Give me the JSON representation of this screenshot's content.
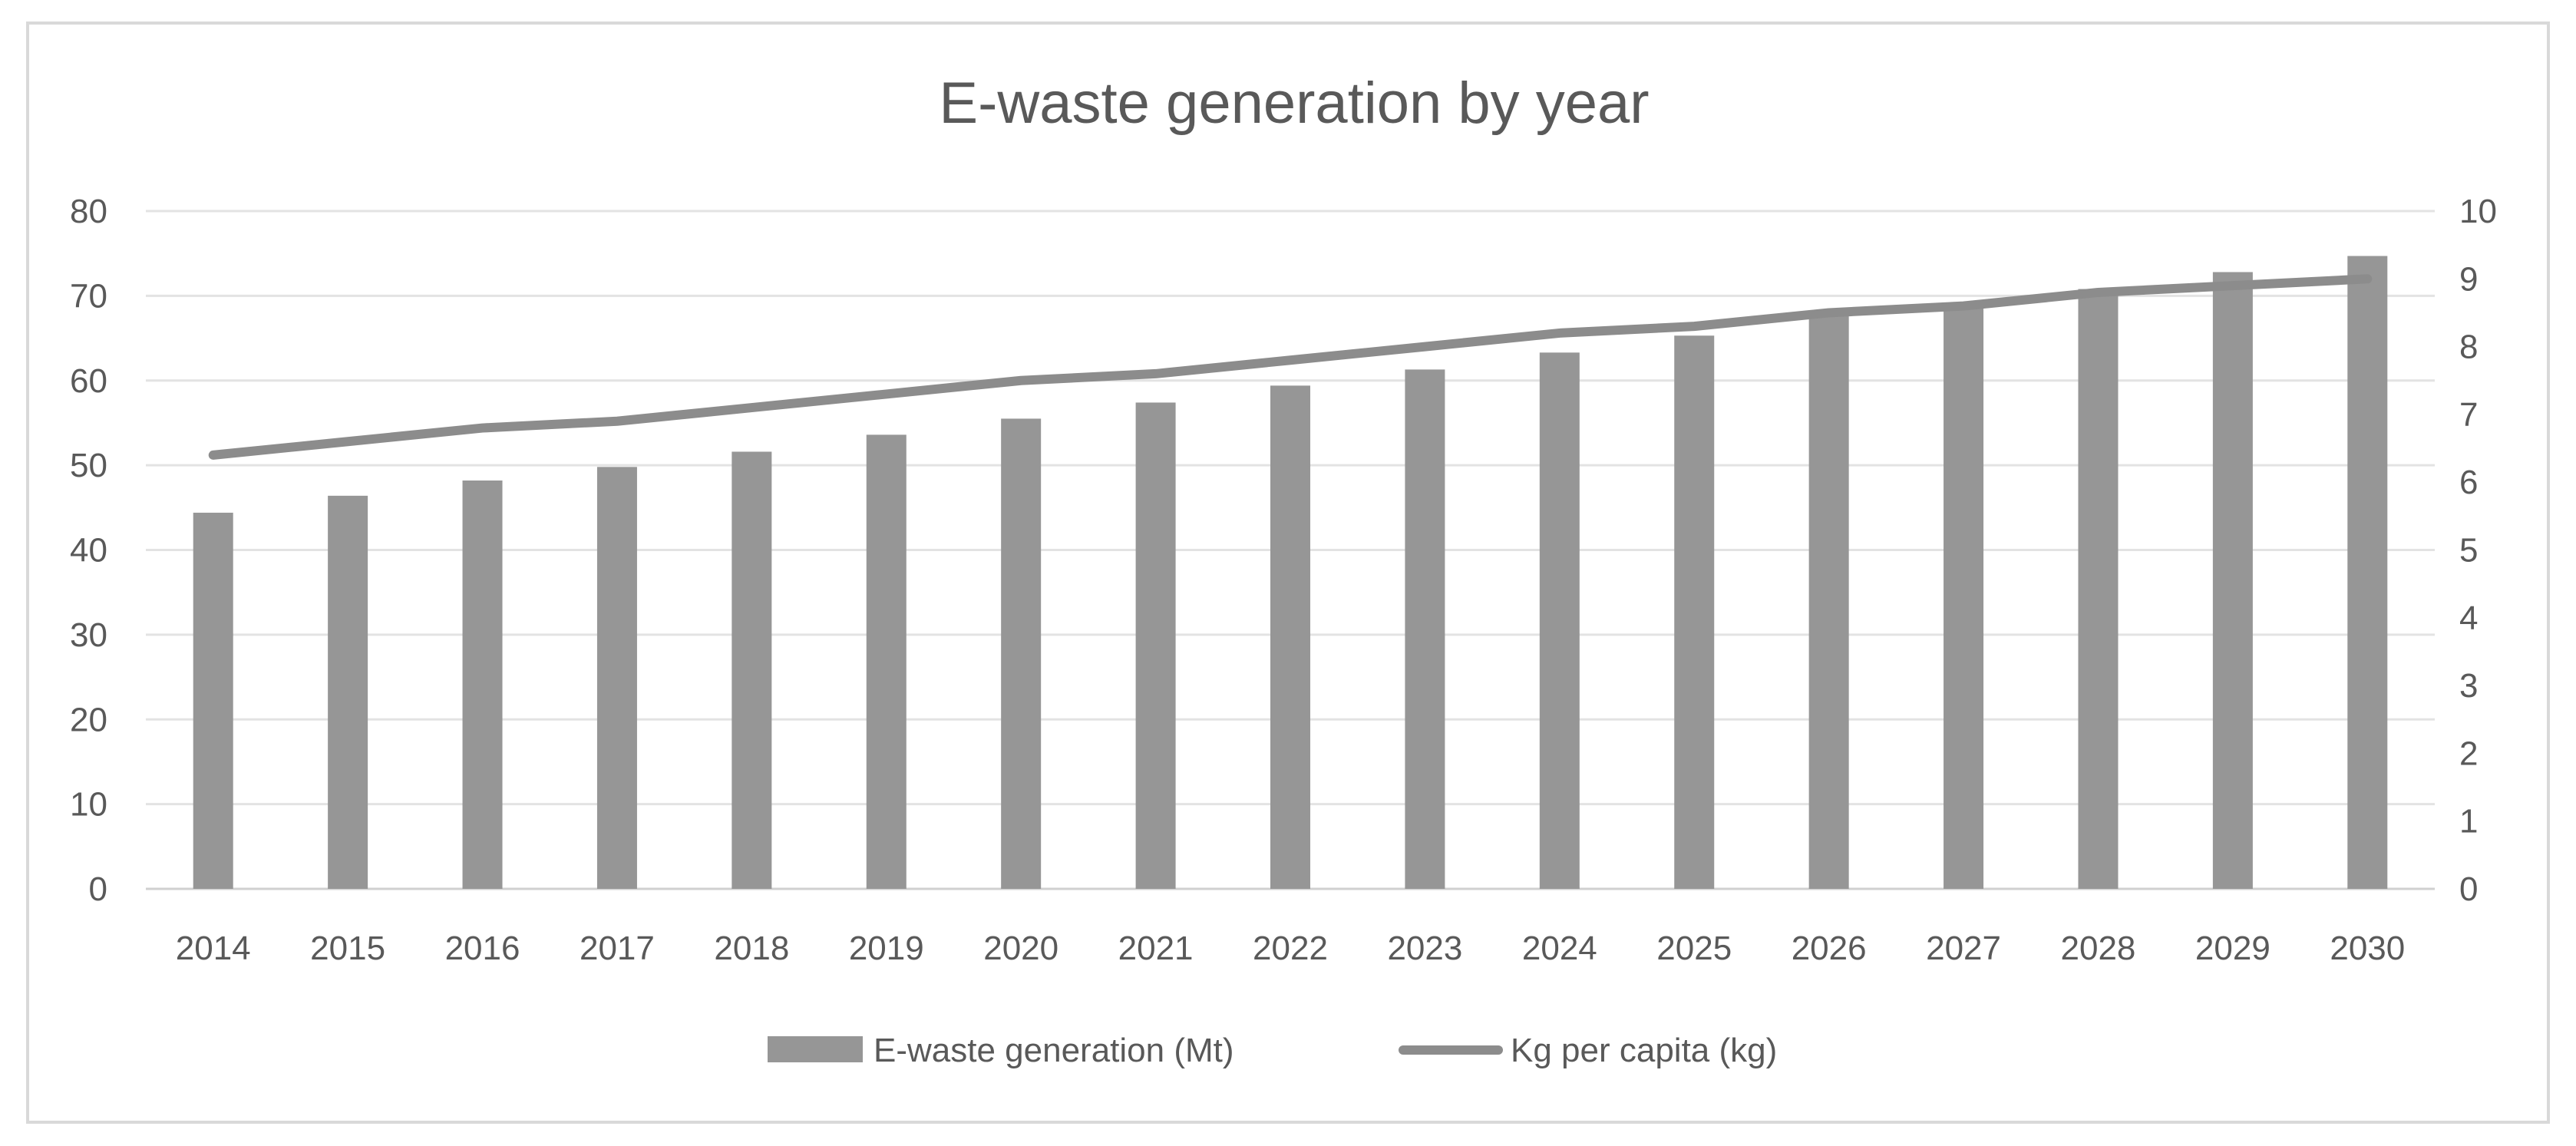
{
  "chart_data": {
    "type": "bar",
    "title": "E-waste generation by year",
    "categories": [
      "2014",
      "2015",
      "2016",
      "2017",
      "2018",
      "2019",
      "2020",
      "2021",
      "2022",
      "2023",
      "2024",
      "2025",
      "2026",
      "2027",
      "2028",
      "2029",
      "2030"
    ],
    "series": [
      {
        "name": "E-waste generation (Mt)",
        "type": "bar",
        "axis": "left",
        "color": "#969696",
        "values": [
          44.4,
          46.4,
          48.2,
          49.8,
          51.6,
          53.6,
          55.5,
          57.4,
          59.4,
          61.3,
          63.3,
          65.3,
          67.6,
          69.1,
          70.8,
          72.8,
          74.7
        ]
      },
      {
        "name": "Kg per capita (kg)",
        "type": "line",
        "axis": "right",
        "color": "#8c8c8c",
        "values": [
          6.4,
          6.6,
          6.8,
          6.9,
          7.1,
          7.3,
          7.5,
          7.6,
          7.8,
          8.0,
          8.2,
          8.3,
          8.5,
          8.6,
          8.8,
          8.9,
          9.0
        ]
      }
    ],
    "y_left": {
      "min": 0,
      "max": 80,
      "step": 10,
      "ticks": [
        "0",
        "10",
        "20",
        "30",
        "40",
        "50",
        "60",
        "70",
        "80"
      ]
    },
    "y_right": {
      "min": 0,
      "max": 10,
      "step": 1,
      "ticks": [
        "0",
        "1",
        "2",
        "3",
        "4",
        "5",
        "6",
        "7",
        "8",
        "9",
        "10"
      ]
    },
    "xlabel": "",
    "ylabel": "",
    "grid": true,
    "legend_position": "bottom"
  }
}
